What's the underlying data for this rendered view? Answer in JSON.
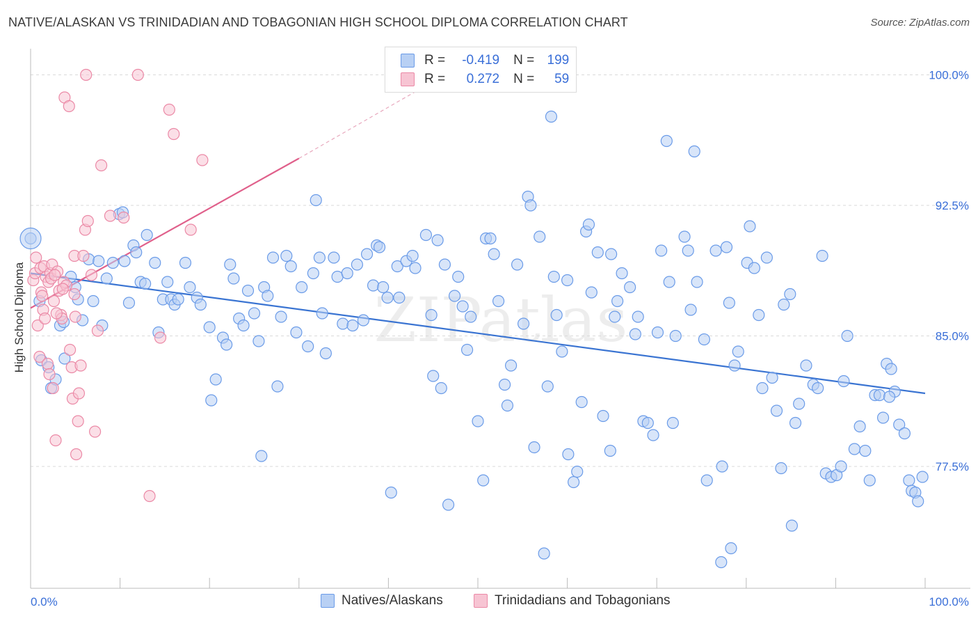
{
  "title": "NATIVE/ALASKAN VS TRINIDADIAN AND TOBAGONIAN HIGH SCHOOL DIPLOMA CORRELATION CHART",
  "source": "Source: ZipAtlas.com",
  "watermark": "ZIPatlas",
  "colors": {
    "blue": "#6a9be8",
    "blue_fill": "#b8d0f4",
    "blue_line": "#3a74d2",
    "pink": "#eb89a6",
    "pink_fill": "#f7c4d3",
    "pink_line": "#e0608b",
    "axis_text": "#3a6fd8",
    "grid": "#d9d9d9"
  },
  "legend_top": {
    "rows": [
      {
        "r_label": "R =",
        "r_value": "-0.419",
        "n_label": "N =",
        "n_value": "199",
        "series": "blue"
      },
      {
        "r_label": "R =",
        "r_value": "0.272",
        "n_label": "N =",
        "n_value": "59",
        "series": "pink"
      }
    ]
  },
  "legend_bottom": [
    {
      "label": "Natives/Alaskans",
      "series": "blue"
    },
    {
      "label": "Trinidadians and Tobagonians",
      "series": "pink"
    }
  ],
  "chart_data": {
    "type": "scatter",
    "title": "NATIVE/ALASKAN VS TRINIDADIAN AND TOBAGONIAN HIGH SCHOOL DIPLOMA CORRELATION CHART",
    "xlabel": "",
    "ylabel": "High School Diploma",
    "xlim": [
      0,
      100
    ],
    "ylim": [
      70.5,
      101.5
    ],
    "x_tick_labels": [
      "0.0%",
      "100.0%"
    ],
    "y_ticks": [
      77.5,
      85.0,
      92.5,
      100.0
    ],
    "y_tick_labels": [
      "77.5%",
      "85.0%",
      "92.5%",
      "100.0%"
    ],
    "series": [
      {
        "name": "Natives/Alaskans",
        "color": "blue",
        "r": -0.419,
        "n": 199,
        "trend": {
          "x0": 0,
          "y0": 88.6,
          "x1": 100,
          "y1": 81.7
        },
        "points": [
          [
            0,
            90.6
          ],
          [
            1,
            87.0
          ],
          [
            1.2,
            83.6
          ],
          [
            2,
            83.2
          ],
          [
            2.3,
            82.0
          ],
          [
            2.8,
            82.5
          ],
          [
            3.3,
            85.6
          ],
          [
            3.8,
            83.7
          ],
          [
            3.7,
            85.8
          ],
          [
            4.5,
            88.4
          ],
          [
            5,
            87.8
          ],
          [
            5.3,
            87.1
          ],
          [
            5.8,
            85.9
          ],
          [
            6.5,
            89.4
          ],
          [
            7,
            87.0
          ],
          [
            7.6,
            89.3
          ],
          [
            8,
            85.6
          ],
          [
            8.5,
            88.3
          ],
          [
            9.2,
            89.2
          ],
          [
            9.9,
            92.0
          ],
          [
            10.3,
            92.1
          ],
          [
            10.5,
            89.3
          ],
          [
            11,
            86.9
          ],
          [
            11.5,
            90.2
          ],
          [
            11.8,
            89.8
          ],
          [
            12.3,
            88.1
          ],
          [
            12.8,
            88.0
          ],
          [
            13,
            90.8
          ],
          [
            13.9,
            89.2
          ],
          [
            14.3,
            85.2
          ],
          [
            14.8,
            87.1
          ],
          [
            15.3,
            88.1
          ],
          [
            15.7,
            87.1
          ],
          [
            16.1,
            86.8
          ],
          [
            16.5,
            87.1
          ],
          [
            17.3,
            89.2
          ],
          [
            17.8,
            87.8
          ],
          [
            18.6,
            87.2
          ],
          [
            19,
            86.8
          ],
          [
            20,
            85.5
          ],
          [
            20.2,
            81.3
          ],
          [
            20.7,
            82.5
          ],
          [
            21.5,
            84.9
          ],
          [
            21.9,
            84.5
          ],
          [
            22.3,
            89.1
          ],
          [
            22.7,
            88.3
          ],
          [
            23.3,
            86.0
          ],
          [
            23.8,
            85.6
          ],
          [
            24.3,
            87.6
          ],
          [
            25,
            86.3
          ],
          [
            25.5,
            84.7
          ],
          [
            25.8,
            78.1
          ],
          [
            26.1,
            87.8
          ],
          [
            26.5,
            87.3
          ],
          [
            27.1,
            89.5
          ],
          [
            27.6,
            82.1
          ],
          [
            28,
            86.1
          ],
          [
            28.6,
            89.6
          ],
          [
            29.1,
            89.0
          ],
          [
            29.7,
            85.2
          ],
          [
            30.3,
            87.8
          ],
          [
            31,
            84.4
          ],
          [
            31.6,
            88.6
          ],
          [
            31.9,
            92.8
          ],
          [
            32.3,
            89.5
          ],
          [
            32.6,
            86.3
          ],
          [
            33,
            84.0
          ],
          [
            33.9,
            89.5
          ],
          [
            34.3,
            88.4
          ],
          [
            34.9,
            85.7
          ],
          [
            35.4,
            88.6
          ],
          [
            36,
            85.6
          ],
          [
            36.5,
            89.1
          ],
          [
            37.2,
            85.9
          ],
          [
            37.6,
            89.7
          ],
          [
            38.3,
            87.9
          ],
          [
            38.7,
            90.2
          ],
          [
            39,
            90.1
          ],
          [
            39.4,
            87.8
          ],
          [
            39.9,
            87.2
          ],
          [
            40.3,
            76.0
          ],
          [
            41,
            89.0
          ],
          [
            41.2,
            87.2
          ],
          [
            42,
            89.3
          ],
          [
            42.7,
            89.6
          ],
          [
            43,
            88.9
          ],
          [
            44.2,
            90.8
          ],
          [
            44.8,
            86.2
          ],
          [
            45,
            82.7
          ],
          [
            45.5,
            90.5
          ],
          [
            45.9,
            82.0
          ],
          [
            46.3,
            89.1
          ],
          [
            46.7,
            75.3
          ],
          [
            47.4,
            87.3
          ],
          [
            47.8,
            88.4
          ],
          [
            48.3,
            86.7
          ],
          [
            48.8,
            84.2
          ],
          [
            49.2,
            86.1
          ],
          [
            50,
            80.1
          ],
          [
            50.6,
            76.7
          ],
          [
            50.9,
            90.6
          ],
          [
            51.4,
            90.6
          ],
          [
            51.8,
            89.7
          ],
          [
            52.3,
            87.0
          ],
          [
            53,
            82.2
          ],
          [
            53.3,
            81.0
          ],
          [
            53.7,
            83.3
          ],
          [
            54.4,
            89.1
          ],
          [
            55.1,
            85.7
          ],
          [
            55.6,
            93.0
          ],
          [
            55.9,
            92.5
          ],
          [
            56.3,
            78.6
          ],
          [
            56.9,
            90.7
          ],
          [
            57.4,
            72.5
          ],
          [
            57.8,
            82.1
          ],
          [
            58.2,
            97.6
          ],
          [
            58.5,
            88.4
          ],
          [
            58.8,
            86.2
          ],
          [
            59.4,
            84.1
          ],
          [
            60.1,
            78.2
          ],
          [
            60.7,
            76.6
          ],
          [
            61.1,
            77.2
          ],
          [
            61.6,
            81.2
          ],
          [
            62.1,
            91.0
          ],
          [
            62.4,
            91.4
          ],
          [
            62.7,
            87.5
          ],
          [
            63.4,
            89.8
          ],
          [
            64.0,
            80.4
          ],
          [
            64.8,
            78.4
          ],
          [
            65.3,
            86.1
          ],
          [
            65.6,
            87.0
          ],
          [
            66.1,
            88.6
          ],
          [
            67.0,
            87.8
          ],
          [
            67.6,
            85.1
          ],
          [
            67.9,
            86.1
          ],
          [
            68.5,
            80.1
          ],
          [
            69,
            80.0
          ],
          [
            69.6,
            79.3
          ],
          [
            70.1,
            85.2
          ],
          [
            70.5,
            89.9
          ],
          [
            71.1,
            96.2
          ],
          [
            71.4,
            88.1
          ],
          [
            72.1,
            85.0
          ],
          [
            73.1,
            90.7
          ],
          [
            73.5,
            89.9
          ],
          [
            73.8,
            86.5
          ],
          [
            74.2,
            95.6
          ],
          [
            74.5,
            88.1
          ],
          [
            75.3,
            84.8
          ],
          [
            75.6,
            76.7
          ],
          [
            76.6,
            89.9
          ],
          [
            77.3,
            77.5
          ],
          [
            77.8,
            90.1
          ],
          [
            78.1,
            86.9
          ],
          [
            78.7,
            83.3
          ],
          [
            79.1,
            84.1
          ],
          [
            80.1,
            89.2
          ],
          [
            80.4,
            91.3
          ],
          [
            80.9,
            88.9
          ],
          [
            81.4,
            86.2
          ],
          [
            81.8,
            82.0
          ],
          [
            82.3,
            89.5
          ],
          [
            82.9,
            82.6
          ],
          [
            83.4,
            80.7
          ],
          [
            83.9,
            77.4
          ],
          [
            84.2,
            86.8
          ],
          [
            84.9,
            87.4
          ],
          [
            85.1,
            74.1
          ],
          [
            85.5,
            80.0
          ],
          [
            85.9,
            81.1
          ],
          [
            86.7,
            83.3
          ],
          [
            87.5,
            82.2
          ],
          [
            88.0,
            82.0
          ],
          [
            88.5,
            89.6
          ],
          [
            88.9,
            77.1
          ],
          [
            89.5,
            76.9
          ],
          [
            90.1,
            77.0
          ],
          [
            90.6,
            77.5
          ],
          [
            90.9,
            82.4
          ],
          [
            91.3,
            85.0
          ],
          [
            92.1,
            78.5
          ],
          [
            92.7,
            79.8
          ],
          [
            93.3,
            78.4
          ],
          [
            93.8,
            76.7
          ],
          [
            94.4,
            81.6
          ],
          [
            94.9,
            81.6
          ],
          [
            95.3,
            80.3
          ],
          [
            95.7,
            83.4
          ],
          [
            96.2,
            83.1
          ],
          [
            96.6,
            81.8
          ],
          [
            97.1,
            79.9
          ],
          [
            97.7,
            79.4
          ],
          [
            98.2,
            76.7
          ],
          [
            98.5,
            76.1
          ],
          [
            98.9,
            76.0
          ],
          [
            99.2,
            75.5
          ],
          [
            99.7,
            76.9
          ],
          [
            96.0,
            81.5
          ],
          [
            78.3,
            72.8
          ],
          [
            77.2,
            72.0
          ],
          [
            71.8,
            80.0
          ],
          [
            64.9,
            89.7
          ],
          [
            60.0,
            88.2
          ]
        ]
      },
      {
        "name": "Trinidadians and Tobagonians",
        "color": "pink",
        "r": 0.272,
        "n": 59,
        "trend": {
          "x0": 0,
          "y0": 86.6,
          "x1": 30,
          "y1": 95.2
        },
        "trend_dashed_to": {
          "x": 48,
          "y": 100.5
        },
        "points": [
          [
            0.3,
            88.2
          ],
          [
            0.5,
            88.6
          ],
          [
            0.6,
            89.5
          ],
          [
            0.8,
            85.6
          ],
          [
            1.0,
            83.8
          ],
          [
            1.1,
            88.9
          ],
          [
            1.2,
            87.5
          ],
          [
            1.4,
            86.5
          ],
          [
            1.5,
            89.0
          ],
          [
            1.6,
            86.0
          ],
          [
            1.7,
            88.4
          ],
          [
            1.9,
            83.4
          ],
          [
            2.0,
            88.1
          ],
          [
            2.1,
            82.8
          ],
          [
            2.2,
            88.6
          ],
          [
            2.3,
            88.3
          ],
          [
            2.4,
            89.1
          ],
          [
            2.5,
            82.0
          ],
          [
            2.6,
            87.0
          ],
          [
            2.8,
            79.0
          ],
          [
            3.0,
            88.7
          ],
          [
            3.2,
            87.6
          ],
          [
            3.4,
            86.2
          ],
          [
            3.5,
            86.0
          ],
          [
            3.7,
            88.1
          ],
          [
            3.8,
            98.7
          ],
          [
            4.0,
            87.9
          ],
          [
            4.3,
            98.2
          ],
          [
            4.4,
            84.2
          ],
          [
            4.6,
            83.2
          ],
          [
            4.7,
            81.4
          ],
          [
            4.9,
            89.6
          ],
          [
            5.0,
            86.1
          ],
          [
            5.3,
            80.1
          ],
          [
            5.4,
            81.7
          ],
          [
            5.6,
            83.3
          ],
          [
            5.9,
            89.6
          ],
          [
            6.1,
            91.1
          ],
          [
            6.4,
            91.6
          ],
          [
            6.8,
            88.5
          ],
          [
            7.2,
            79.5
          ],
          [
            7.5,
            85.3
          ],
          [
            7.9,
            94.8
          ],
          [
            6.2,
            100.0
          ],
          [
            8.9,
            91.9
          ],
          [
            10.4,
            91.8
          ],
          [
            12.0,
            100.0
          ],
          [
            13.3,
            75.8
          ],
          [
            14.5,
            84.9
          ],
          [
            15.5,
            98.0
          ],
          [
            16.0,
            96.6
          ],
          [
            17.9,
            91.1
          ],
          [
            19.2,
            95.1
          ],
          [
            4.9,
            87.4
          ],
          [
            2.9,
            86.3
          ],
          [
            3.6,
            87.7
          ],
          [
            5.1,
            78.2
          ],
          [
            1.3,
            87.3
          ],
          [
            2.7,
            88.5
          ]
        ]
      }
    ]
  }
}
